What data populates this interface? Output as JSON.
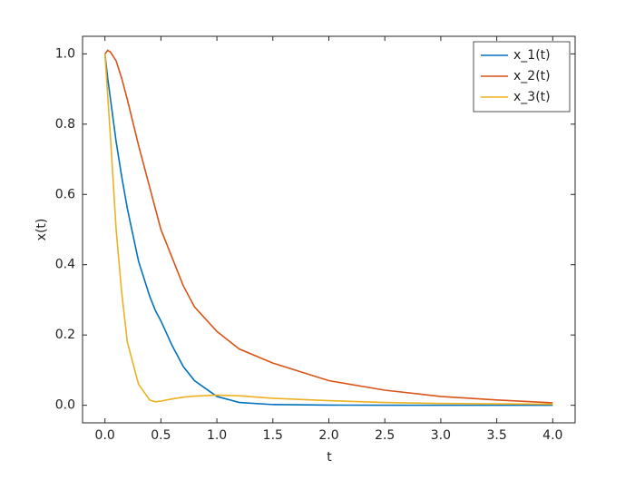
{
  "chart_data": {
    "type": "line",
    "xlabel": "t",
    "ylabel": "x(t)",
    "x": [
      0,
      0.025,
      0.05,
      0.1,
      0.15,
      0.2,
      0.3,
      0.4,
      0.45,
      0.5,
      0.6,
      0.7,
      0.8,
      1.0,
      1.2,
      1.5,
      2.0,
      2.5,
      3.0,
      3.5,
      4.0
    ],
    "series": [
      {
        "name": "x_1(t)",
        "color": "#0072bd",
        "values": [
          1.0,
          0.93,
          0.87,
          0.75,
          0.65,
          0.56,
          0.41,
          0.31,
          0.27,
          0.24,
          0.17,
          0.11,
          0.07,
          0.025,
          0.008,
          0.002,
          0.0005,
          0.0001,
          0,
          0,
          0
        ]
      },
      {
        "name": "x_2(t)",
        "color": "#d95319",
        "values": [
          1.0,
          1.01,
          1.005,
          0.98,
          0.93,
          0.87,
          0.74,
          0.62,
          0.56,
          0.5,
          0.42,
          0.34,
          0.28,
          0.21,
          0.16,
          0.12,
          0.07,
          0.043,
          0.025,
          0.015,
          0.007
        ]
      },
      {
        "name": "x_3(t)",
        "color": "#edb120",
        "values": [
          1.0,
          0.88,
          0.76,
          0.5,
          0.32,
          0.18,
          0.06,
          0.015,
          0.01,
          0.012,
          0.018,
          0.023,
          0.026,
          0.029,
          0.027,
          0.02,
          0.013,
          0.008,
          0.005,
          0.004,
          0.003
        ]
      }
    ],
    "xlim": [
      -0.2,
      4.2
    ],
    "ylim": [
      -0.05,
      1.05
    ],
    "xticks": [
      {
        "value": 0,
        "label": "0.0"
      },
      0.5,
      {
        "value": 1,
        "label": "1.0"
      },
      1.5,
      {
        "value": 2,
        "label": "2.0"
      },
      2.5,
      {
        "value": 3,
        "label": "3.0"
      },
      3.5,
      {
        "value": 4,
        "label": "4.0"
      }
    ],
    "yticks": [
      {
        "value": 0,
        "label": "0.0"
      },
      0.2,
      0.4,
      0.6,
      0.8,
      {
        "value": 1,
        "label": "1.0"
      }
    ],
    "legend": "upper-right",
    "grid": false
  }
}
